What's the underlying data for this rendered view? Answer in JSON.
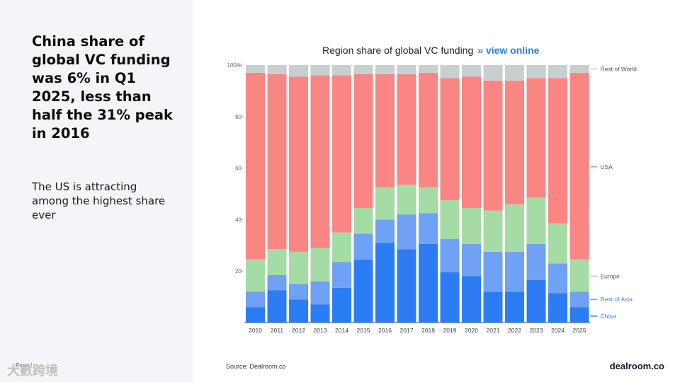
{
  "left": {
    "headline": "China share of global VC funding was 6% in Q1 2025, less than half the 31% peak in 2016",
    "subhead": "The US is attracting among the highest share ever",
    "page_label": "Page /",
    "watermark": "大數跨境"
  },
  "header": {
    "title": "Region share of global VC funding",
    "link": "» view online"
  },
  "footer": {
    "source": "Source:  Dealroom.co",
    "brand": "dealroom.co"
  },
  "colors": {
    "China": "#2c7cf4",
    "Rest of Asia": "#6fa1f5",
    "Europe": "#a5dca6",
    "USA": "#fa8683",
    "Rest of World": "#c8cfd0"
  },
  "chart_data": {
    "type": "bar",
    "stacked": true,
    "categories": [
      "2010",
      "2011",
      "2012",
      "2013",
      "2014",
      "2015",
      "2016",
      "2017",
      "2018",
      "2019",
      "2020",
      "2021",
      "2022",
      "2023",
      "2024",
      "2025"
    ],
    "series": [
      {
        "name": "China",
        "values": [
          6,
          12.5,
          9,
          7,
          13.5,
          24.5,
          31,
          28.5,
          30.5,
          19.5,
          18,
          12,
          12,
          16.5,
          11.5,
          6
        ]
      },
      {
        "name": "Rest of Asia",
        "values": [
          6,
          6,
          6,
          9,
          10,
          10,
          9,
          13.5,
          12,
          13,
          12.5,
          15.5,
          15.5,
          14,
          11.5,
          6
        ]
      },
      {
        "name": "Europe",
        "values": [
          12.5,
          10,
          12.5,
          13,
          11.5,
          10,
          12.5,
          11.5,
          10,
          15,
          14,
          16,
          18.5,
          18,
          15.5,
          12.5
        ]
      },
      {
        "name": "USA",
        "values": [
          72.5,
          68,
          68,
          67,
          61,
          52,
          44,
          43,
          44.5,
          47.5,
          51,
          50.5,
          48,
          46.5,
          56.5,
          72.5
        ]
      },
      {
        "name": "Rest of World",
        "values": [
          3,
          3.5,
          4.5,
          4,
          4,
          3.5,
          3.5,
          3.5,
          3,
          5,
          4.5,
          6,
          6,
          5,
          5,
          3
        ]
      }
    ],
    "yticks": [
      "100%",
      "80",
      "60",
      "40",
      "20"
    ],
    "ytick_values": [
      100,
      80,
      60,
      40,
      20
    ],
    "ylim": [
      0,
      100
    ],
    "legend_labels": [
      "Rest of World",
      "USA",
      "Europe",
      "Rest of Asia",
      "China"
    ],
    "legend_placement": "right, aligned with last bar segments"
  }
}
